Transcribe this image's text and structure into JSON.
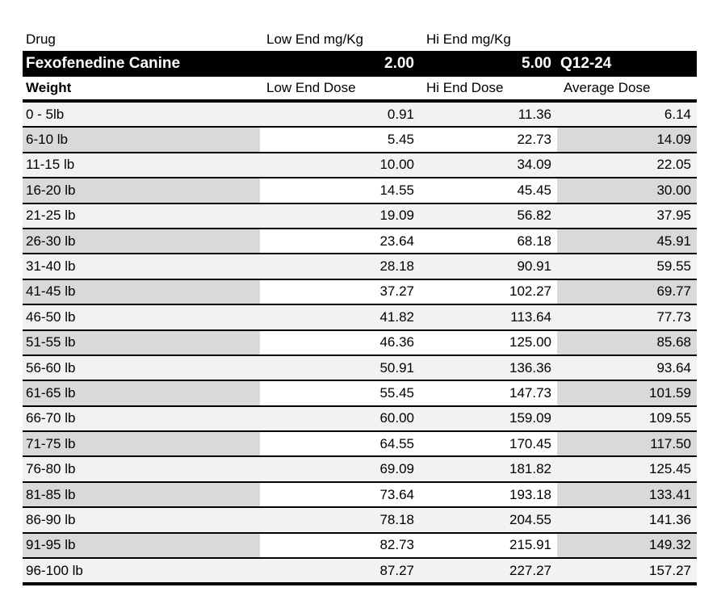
{
  "table": {
    "top_header": {
      "drug": "Drug",
      "low_end_mgkg": "Low End mg/Kg",
      "hi_end_mgkg": "Hi End mg/Kg"
    },
    "drug_band": {
      "name": "Fexofenedine Canine",
      "low_end_mgkg": "2.00",
      "hi_end_mgkg": "5.00",
      "frequency": "Q12-24"
    },
    "dose_header": {
      "weight": "Weight",
      "low_end": "Low End Dose",
      "hi_end": "Hi End Dose",
      "average": "Average Dose"
    },
    "rows": [
      {
        "weight": "0 - 5lb",
        "low": "0.91",
        "hi": "11.36",
        "avg": "6.14"
      },
      {
        "weight": "6-10 lb",
        "low": "5.45",
        "hi": "22.73",
        "avg": "14.09"
      },
      {
        "weight": "11-15 lb",
        "low": "10.00",
        "hi": "34.09",
        "avg": "22.05"
      },
      {
        "weight": "16-20 lb",
        "low": "14.55",
        "hi": "45.45",
        "avg": "30.00"
      },
      {
        "weight": "21-25 lb",
        "low": "19.09",
        "hi": "56.82",
        "avg": "37.95"
      },
      {
        "weight": "26-30 lb",
        "low": "23.64",
        "hi": "68.18",
        "avg": "45.91"
      },
      {
        "weight": "31-40 lb",
        "low": "28.18",
        "hi": "90.91",
        "avg": "59.55"
      },
      {
        "weight": "41-45 lb",
        "low": "37.27",
        "hi": "102.27",
        "avg": "69.77"
      },
      {
        "weight": "46-50 lb",
        "low": "41.82",
        "hi": "113.64",
        "avg": "77.73"
      },
      {
        "weight": "51-55 lb",
        "low": "46.36",
        "hi": "125.00",
        "avg": "85.68"
      },
      {
        "weight": "56-60 lb",
        "low": "50.91",
        "hi": "136.36",
        "avg": "93.64"
      },
      {
        "weight": "61-65 lb",
        "low": "55.45",
        "hi": "147.73",
        "avg": "101.59"
      },
      {
        "weight": "66-70 lb",
        "low": "60.00",
        "hi": "159.09",
        "avg": "109.55"
      },
      {
        "weight": "71-75 lb",
        "low": "64.55",
        "hi": "170.45",
        "avg": "117.50"
      },
      {
        "weight": "76-80 lb",
        "low": "69.09",
        "hi": "181.82",
        "avg": "125.45"
      },
      {
        "weight": "81-85 lb",
        "low": "73.64",
        "hi": "193.18",
        "avg": "133.41"
      },
      {
        "weight": "86-90 lb",
        "low": "78.18",
        "hi": "204.55",
        "avg": "141.36"
      },
      {
        "weight": "91-95 lb",
        "low": "82.73",
        "hi": "215.91",
        "avg": "149.32"
      },
      {
        "weight": "96-100 lb",
        "low": "87.27",
        "hi": "227.27",
        "avg": "157.27"
      }
    ],
    "colors": {
      "band_background": "#000000",
      "band_text": "#ffffff",
      "row_light": "#f2f2f2",
      "row_dark": "#d9d9d9",
      "border": "#000000",
      "text": "#000000"
    }
  }
}
